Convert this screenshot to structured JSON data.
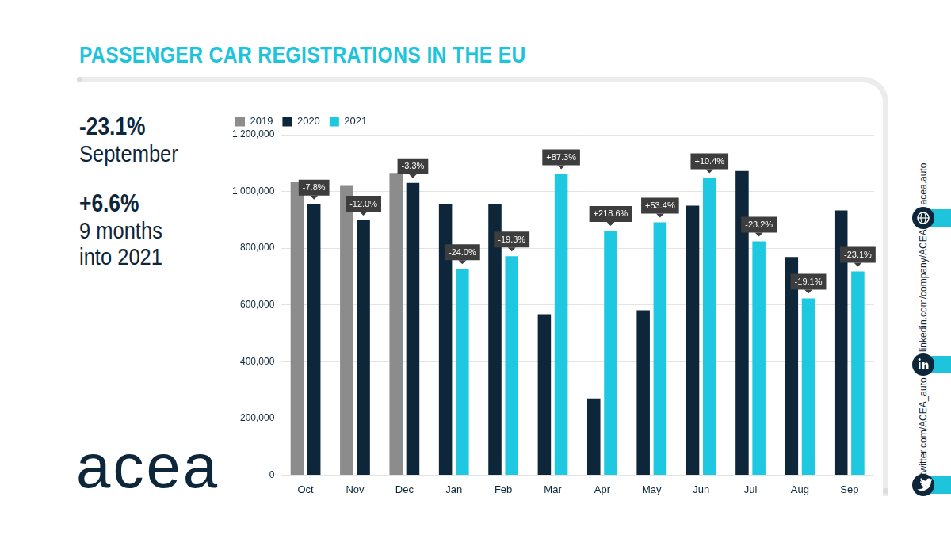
{
  "chart_data": {
    "type": "bar",
    "title": "PASSENGER CAR REGISTRATIONS IN THE EU",
    "categories": [
      "Oct",
      "Nov",
      "Dec",
      "Jan",
      "Feb",
      "Mar",
      "Apr",
      "May",
      "Jun",
      "Jul",
      "Aug",
      "Sep"
    ],
    "series": [
      {
        "name": "2019",
        "color": "#8c8c8c",
        "values": [
          1035000,
          1020000,
          1065000,
          null,
          null,
          null,
          null,
          null,
          null,
          null,
          null,
          null
        ]
      },
      {
        "name": "2020",
        "color": "#0d2639",
        "values": [
          955000,
          898000,
          1030000,
          957000,
          957000,
          567000,
          270000,
          581000,
          950000,
          1072000,
          769000,
          933000
        ]
      },
      {
        "name": "2021",
        "color": "#1ec8e0",
        "values": [
          null,
          null,
          null,
          727000,
          772000,
          1062000,
          862000,
          891000,
          1048000,
          824000,
          623000,
          718000
        ]
      }
    ],
    "ylim": [
      0,
      1200000
    ],
    "yticks": [
      0,
      {
        "value": 200000,
        "label": "200,000"
      },
      {
        "value": 400000,
        "label": "400,000"
      },
      {
        "value": 600000,
        "label": "600,000"
      },
      {
        "value": 800000,
        "label": "800,000"
      },
      {
        "value": 1000000,
        "label": "1,000,000"
      },
      {
        "value": 1200000,
        "label": "1,200,000"
      }
    ],
    "grid": true,
    "legend": "upper left",
    "annotations": [
      {
        "category": "Oct",
        "series": "2020",
        "text": "-7.8%"
      },
      {
        "category": "Nov",
        "series": "2020",
        "text": "-12.0%"
      },
      {
        "category": "Dec",
        "series": "2020",
        "text": "-3.3%"
      },
      {
        "category": "Jan",
        "series": "2021",
        "text": "-24.0%"
      },
      {
        "category": "Feb",
        "series": "2021",
        "text": "-19.3%"
      },
      {
        "category": "Mar",
        "series": "2021",
        "text": "+87.3%"
      },
      {
        "category": "Apr",
        "series": "2021",
        "text": "+218.6%"
      },
      {
        "category": "May",
        "series": "2021",
        "text": "+53.4%"
      },
      {
        "category": "Jun",
        "series": "2021",
        "text": "+10.4%"
      },
      {
        "category": "Jul",
        "series": "2021",
        "text": "-23.2%"
      },
      {
        "category": "Aug",
        "series": "2021",
        "text": "-19.1%"
      },
      {
        "category": "Sep",
        "series": "2021",
        "text": "-23.1%"
      }
    ],
    "highlights": [
      {
        "text": "-23.1%",
        "caption": [
          "September"
        ]
      },
      {
        "text": "+6.6%",
        "caption": [
          "9 months",
          "into 2021"
        ]
      }
    ],
    "logo": "acea",
    "links": [
      "acea.auto",
      "linkedin.com/company/ACEA/",
      "twitter.com/ACEA_auto"
    ]
  }
}
